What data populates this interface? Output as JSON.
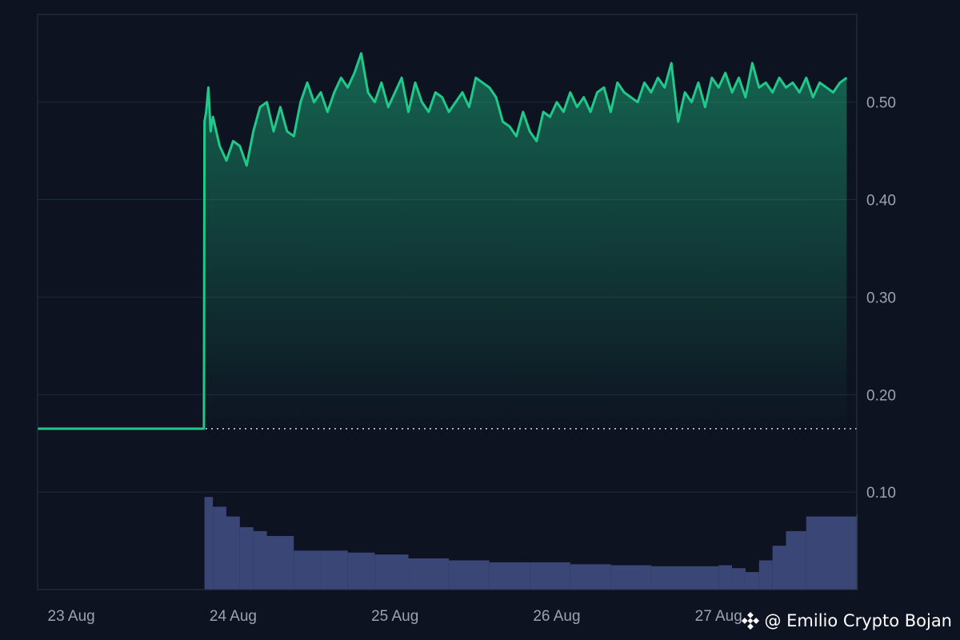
{
  "chart_data": {
    "type": "area",
    "title": "",
    "xlabel": "",
    "ylabel": "",
    "x_ticks": [
      "23 Aug",
      "24 Aug",
      "25 Aug",
      "26 Aug",
      "27 Aug"
    ],
    "y_ticks": [
      "0.10",
      "0.20",
      "0.30",
      "0.40",
      "0.50"
    ],
    "ylim": [
      0.0,
      0.59
    ],
    "xlim": [
      "2024-08-22T19:00",
      "2024-08-27T20:30"
    ],
    "colors": {
      "line": "#1fc98a",
      "volume": "#3a4676",
      "grid": "#1e2a38",
      "baseline": "#d8dde4"
    },
    "baseline": 0.165,
    "grid": true,
    "series": [
      {
        "values_x": [
          "2024-08-22T19:00",
          "2024-08-23T19:40",
          "2024-08-23T19:45",
          "2024-08-23T20:00",
          "2024-08-23T20:20",
          "2024-08-23T20:40",
          "2024-08-23T21:00",
          "2024-08-23T22:00",
          "2024-08-23T23:00",
          "2024-08-24T00:00",
          "2024-08-24T01:00",
          "2024-08-24T02:00",
          "2024-08-24T03:00",
          "2024-08-24T04:00",
          "2024-08-24T05:00",
          "2024-08-24T06:00",
          "2024-08-24T07:00",
          "2024-08-24T08:00",
          "2024-08-24T09:00",
          "2024-08-24T10:00",
          "2024-08-24T11:00",
          "2024-08-24T12:00",
          "2024-08-24T13:00",
          "2024-08-24T14:00",
          "2024-08-24T15:00",
          "2024-08-24T16:00",
          "2024-08-24T17:00",
          "2024-08-24T18:00",
          "2024-08-24T19:00",
          "2024-08-24T20:00",
          "2024-08-24T21:00",
          "2024-08-24T22:00",
          "2024-08-24T23:00",
          "2024-08-25T00:00",
          "2024-08-25T01:00",
          "2024-08-25T02:00",
          "2024-08-25T03:00",
          "2024-08-25T04:00",
          "2024-08-25T05:00",
          "2024-08-25T06:00",
          "2024-08-25T07:00",
          "2024-08-25T08:00",
          "2024-08-25T09:00",
          "2024-08-25T10:00",
          "2024-08-25T11:00",
          "2024-08-25T12:00",
          "2024-08-25T13:00",
          "2024-08-25T14:00",
          "2024-08-25T15:00",
          "2024-08-25T16:00",
          "2024-08-25T17:00",
          "2024-08-25T18:00",
          "2024-08-25T19:00",
          "2024-08-25T20:00",
          "2024-08-25T21:00",
          "2024-08-25T22:00",
          "2024-08-25T23:00",
          "2024-08-26T00:00",
          "2024-08-26T01:00",
          "2024-08-26T02:00",
          "2024-08-26T03:00",
          "2024-08-26T04:00",
          "2024-08-26T05:00",
          "2024-08-26T06:00",
          "2024-08-26T07:00",
          "2024-08-26T08:00",
          "2024-08-26T09:00",
          "2024-08-26T10:00",
          "2024-08-26T11:00",
          "2024-08-26T12:00",
          "2024-08-26T13:00",
          "2024-08-26T14:00",
          "2024-08-26T15:00",
          "2024-08-26T16:00",
          "2024-08-26T17:00",
          "2024-08-26T18:00",
          "2024-08-26T19:00",
          "2024-08-26T20:00",
          "2024-08-26T21:00",
          "2024-08-26T22:00",
          "2024-08-26T23:00",
          "2024-08-27T00:00",
          "2024-08-27T01:00",
          "2024-08-27T02:00",
          "2024-08-27T03:00",
          "2024-08-27T04:00",
          "2024-08-27T05:00",
          "2024-08-27T06:00",
          "2024-08-27T07:00",
          "2024-08-27T08:00",
          "2024-08-27T09:00",
          "2024-08-27T10:00",
          "2024-08-27T11:00",
          "2024-08-27T12:00",
          "2024-08-27T13:00",
          "2024-08-27T14:00",
          "2024-08-27T15:00",
          "2024-08-27T16:00",
          "2024-08-27T17:00",
          "2024-08-27T18:00",
          "2024-08-27T19:00",
          "2024-08-27T20:30"
        ],
        "values": [
          0.165,
          0.165,
          0.48,
          0.49,
          0.515,
          0.47,
          0.485,
          0.455,
          0.44,
          0.46,
          0.455,
          0.435,
          0.47,
          0.495,
          0.5,
          0.47,
          0.495,
          0.47,
          0.465,
          0.5,
          0.52,
          0.5,
          0.51,
          0.49,
          0.51,
          0.525,
          0.515,
          0.53,
          0.55,
          0.51,
          0.5,
          0.52,
          0.495,
          0.51,
          0.525,
          0.49,
          0.52,
          0.5,
          0.49,
          0.51,
          0.505,
          0.49,
          0.5,
          0.51,
          0.495,
          0.525,
          0.52,
          0.515,
          0.505,
          0.48,
          0.475,
          0.465,
          0.49,
          0.47,
          0.46,
          0.49,
          0.485,
          0.5,
          0.49,
          0.51,
          0.495,
          0.505,
          0.49,
          0.51,
          0.515,
          0.49,
          0.52,
          0.51,
          0.505,
          0.5,
          0.52,
          0.51,
          0.525,
          0.515,
          0.54,
          0.48,
          0.51,
          0.5,
          0.52,
          0.495,
          0.525,
          0.515,
          0.53,
          0.51,
          0.525,
          0.505,
          0.54,
          0.515,
          0.52,
          0.51,
          0.525,
          0.515,
          0.52,
          0.51,
          0.525,
          0.505,
          0.52,
          0.515,
          0.51,
          0.52,
          0.525
        ]
      }
    ],
    "volume": {
      "values_x": [
        "2024-08-23T19:45",
        "2024-08-23T21:00",
        "2024-08-23T23:00",
        "2024-08-24T01:00",
        "2024-08-24T03:00",
        "2024-08-24T05:00",
        "2024-08-24T09:00",
        "2024-08-24T13:00",
        "2024-08-24T17:00",
        "2024-08-24T21:00",
        "2024-08-25T02:00",
        "2024-08-25T08:00",
        "2024-08-25T14:00",
        "2024-08-25T20:00",
        "2024-08-26T02:00",
        "2024-08-26T08:00",
        "2024-08-26T14:00",
        "2024-08-26T20:00",
        "2024-08-27T00:00",
        "2024-08-27T02:00",
        "2024-08-27T04:00",
        "2024-08-27T06:00",
        "2024-08-27T08:00",
        "2024-08-27T10:00",
        "2024-08-27T13:00",
        "2024-08-27T20:30"
      ],
      "values": [
        0.095,
        0.085,
        0.075,
        0.064,
        0.06,
        0.055,
        0.04,
        0.04,
        0.038,
        0.036,
        0.032,
        0.03,
        0.028,
        0.028,
        0.026,
        0.025,
        0.024,
        0.024,
        0.025,
        0.022,
        0.018,
        0.03,
        0.045,
        0.06,
        0.075,
        0.078
      ]
    }
  },
  "watermark": {
    "text": "@ Emilio Crypto Bojan",
    "icon": "binance-diamond-icon"
  }
}
